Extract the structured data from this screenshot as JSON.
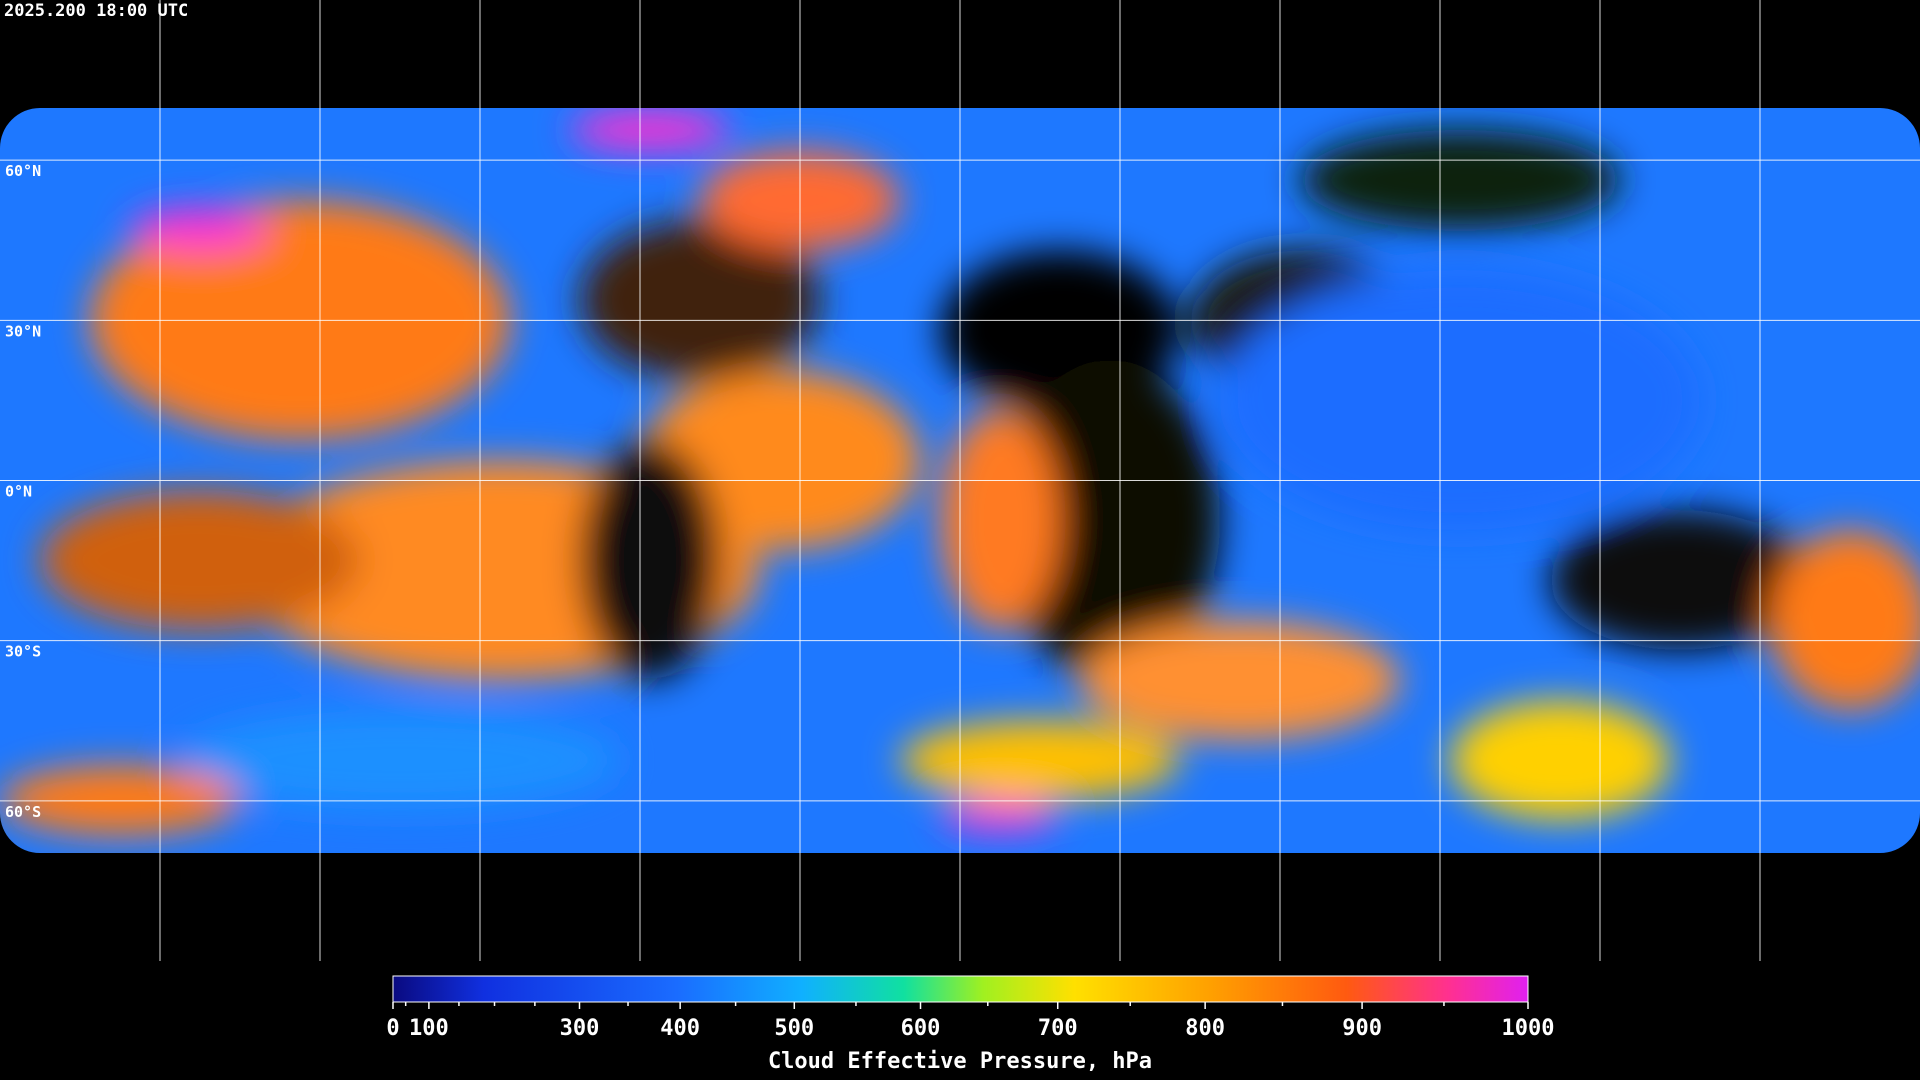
{
  "header": {
    "timestamp": "2025.200 18:00 UTC"
  },
  "map": {
    "lat_lim": [
      90,
      -90
    ],
    "lon_lim": [
      -180,
      180
    ],
    "lat_ticks": [
      {
        "value": 60,
        "label": "60°N"
      },
      {
        "value": 30,
        "label": "30°N"
      },
      {
        "value": 0,
        "label": "0°N"
      },
      {
        "value": -30,
        "label": "30°S"
      },
      {
        "value": -60,
        "label": "60°S"
      }
    ],
    "lon_grid": [
      -150,
      -120,
      -90,
      -60,
      -30,
      0,
      30,
      60,
      90,
      120,
      150
    ]
  },
  "colorbar": {
    "title": "Cloud Effective Pressure, hPa",
    "lim": [
      0,
      1000
    ],
    "scale": "power",
    "exponent": 1.5,
    "ticks": [
      0,
      100,
      300,
      400,
      500,
      600,
      700,
      800,
      900,
      1000
    ],
    "minor_ticks": [
      50,
      150,
      200,
      250,
      350,
      450,
      550,
      650,
      750,
      850,
      950
    ]
  }
}
